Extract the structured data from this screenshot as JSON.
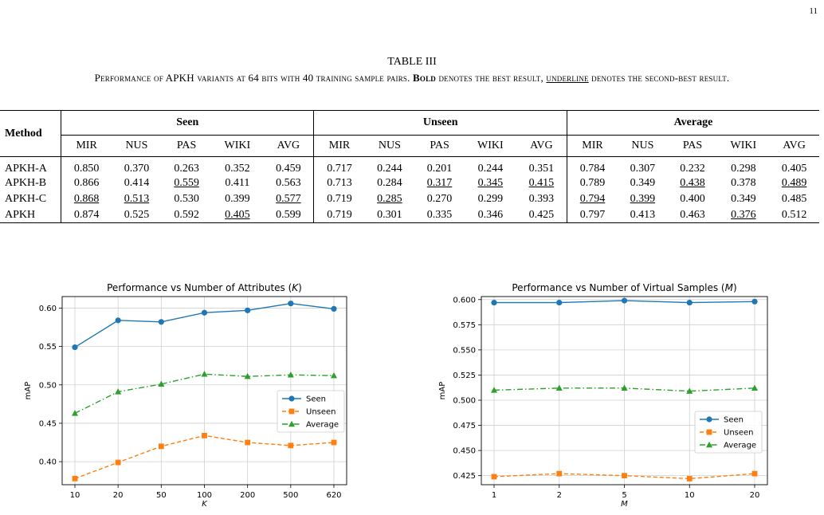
{
  "page_number": "11",
  "table": {
    "label": "TABLE III",
    "caption_parts": {
      "pre": "Performance of APKH variants at 64 bits with 40 training sample pairs. ",
      "bold_word": "Bold",
      "mid": " denotes the best result, ",
      "underline_word": "underline",
      "post": " denotes the second-best result."
    },
    "header": {
      "method": "Method",
      "groups": [
        "Seen",
        "Unseen",
        "Average"
      ],
      "columns": [
        "MIR",
        "NUS",
        "PAS",
        "WIKI",
        "AVG"
      ]
    },
    "rows": [
      {
        "method": "APKH-A",
        "values": [
          "0.850",
          "0.370",
          "0.263",
          "0.352",
          "0.459",
          "0.717",
          "0.244",
          "0.201",
          "0.244",
          "0.351",
          "0.784",
          "0.307",
          "0.232",
          "0.298",
          "0.405"
        ]
      },
      {
        "method": "APKH-B",
        "values": [
          "0.866",
          "0.414",
          "0.559",
          "0.411",
          "0.563",
          "0.713",
          "0.284",
          "0.317",
          "0.345",
          "0.415",
          "0.789",
          "0.349",
          "0.438",
          "0.378",
          "0.489"
        ]
      },
      {
        "method": "APKH-C",
        "values": [
          "0.868",
          "0.513",
          "0.530",
          "0.399",
          "0.577",
          "0.719",
          "0.285",
          "0.270",
          "0.299",
          "0.393",
          "0.794",
          "0.399",
          "0.400",
          "0.349",
          "0.485"
        ]
      },
      {
        "method": "APKH",
        "values": [
          "0.874",
          "0.525",
          "0.592",
          "0.405",
          "0.599",
          "0.719",
          "0.301",
          "0.335",
          "0.346",
          "0.425",
          "0.797",
          "0.413",
          "0.463",
          "0.376",
          "0.512"
        ]
      }
    ],
    "styles": {
      "bold": [
        [
          3,
          0
        ],
        [
          3,
          1
        ],
        [
          3,
          2
        ],
        [
          3,
          4
        ],
        [
          2,
          5
        ],
        [
          3,
          5
        ],
        [
          3,
          6
        ],
        [
          3,
          7
        ],
        [
          3,
          8
        ],
        [
          3,
          9
        ],
        [
          3,
          10
        ],
        [
          3,
          11
        ],
        [
          3,
          12
        ],
        [
          1,
          13
        ],
        [
          3,
          14
        ]
      ],
      "underline": [
        [
          2,
          0
        ],
        [
          2,
          1
        ],
        [
          1,
          2
        ],
        [
          3,
          3
        ],
        [
          2,
          4
        ],
        [
          2,
          6
        ],
        [
          1,
          7
        ],
        [
          1,
          8
        ],
        [
          1,
          9
        ],
        [
          2,
          10
        ],
        [
          2,
          11
        ],
        [
          1,
          12
        ],
        [
          3,
          13
        ],
        [
          1,
          14
        ]
      ]
    }
  },
  "chart_data": [
    {
      "type": "line",
      "title_pre": "Performance vs Number of Attributes (",
      "title_var": "K",
      "title_post": ")",
      "xlabel": "K",
      "ylabel": "mAP",
      "categories": [
        "10",
        "20",
        "50",
        "100",
        "200",
        "500",
        "620"
      ],
      "ylim": [
        0.37,
        0.615
      ],
      "yticks": [
        "0.40",
        "0.45",
        "0.50",
        "0.55",
        "0.60"
      ],
      "grid": true,
      "legend_position": "center-right",
      "series": [
        {
          "name": "Seen",
          "color": "#1f77b4",
          "marker": "circle",
          "dash": "solid",
          "values": [
            0.549,
            0.584,
            0.582,
            0.594,
            0.597,
            0.606,
            0.599
          ]
        },
        {
          "name": "Unseen",
          "color": "#ff7f0e",
          "marker": "square",
          "dash": "dashed",
          "values": [
            0.378,
            0.399,
            0.42,
            0.434,
            0.425,
            0.421,
            0.425
          ]
        },
        {
          "name": "Average",
          "color": "#2ca02c",
          "marker": "triangle",
          "dash": "dashdot",
          "values": [
            0.463,
            0.491,
            0.501,
            0.514,
            0.511,
            0.513,
            0.512
          ]
        }
      ]
    },
    {
      "type": "line",
      "title_pre": "Performance vs Number of Virtual Samples (",
      "title_var": "M",
      "title_post": ")",
      "xlabel": "M",
      "ylabel": "mAP",
      "categories": [
        "1",
        "2",
        "5",
        "10",
        "20"
      ],
      "ylim": [
        0.416,
        0.603
      ],
      "yticks": [
        "0.425",
        "0.450",
        "0.475",
        "0.500",
        "0.525",
        "0.550",
        "0.575",
        "0.600"
      ],
      "grid": true,
      "legend_position": "lower-right",
      "series": [
        {
          "name": "Seen",
          "color": "#1f77b4",
          "marker": "circle",
          "dash": "solid",
          "values": [
            0.597,
            0.597,
            0.599,
            0.597,
            0.598
          ]
        },
        {
          "name": "Unseen",
          "color": "#ff7f0e",
          "marker": "square",
          "dash": "dashed",
          "values": [
            0.424,
            0.427,
            0.425,
            0.422,
            0.427
          ]
        },
        {
          "name": "Average",
          "color": "#2ca02c",
          "marker": "triangle",
          "dash": "dashdot",
          "values": [
            0.51,
            0.512,
            0.512,
            0.509,
            0.512
          ]
        }
      ]
    }
  ]
}
